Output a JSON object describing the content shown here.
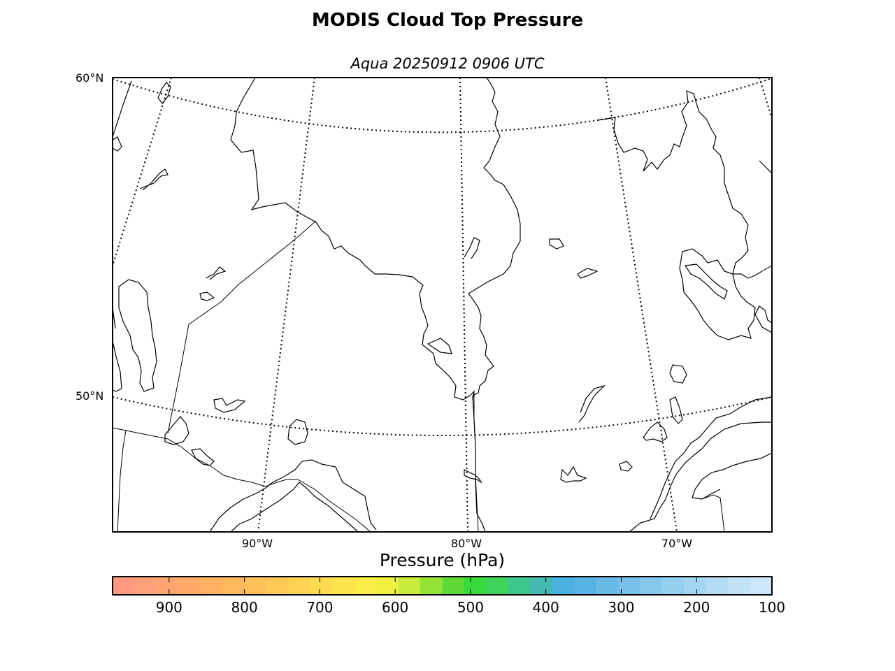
{
  "figure": {
    "title": "MODIS Cloud Top Pressure",
    "subtitle": "Aqua 20250912 0906 UTC"
  },
  "map": {
    "latitude_labels": [
      "60°N",
      "50°N"
    ],
    "longitude_labels": [
      "90°W",
      "80°W",
      "70°W"
    ],
    "gridlines": "dotted",
    "coastlines": true,
    "borders": true,
    "data_shown": "none"
  },
  "colorbar": {
    "label": "Pressure (hPa)",
    "ticks": [
      "900",
      "800",
      "700",
      "600",
      "500",
      "400",
      "300",
      "200",
      "100"
    ],
    "tick_values": [
      900,
      800,
      700,
      600,
      500,
      400,
      300,
      200,
      100
    ],
    "range": [
      975,
      100
    ],
    "colors": [
      "#ff9a80",
      "#ffa078",
      "#ffa670",
      "#ffab68",
      "#ffb262",
      "#ffb95d",
      "#ffc158",
      "#ffc955",
      "#ffd253",
      "#ffdb50",
      "#ffe44c",
      "#fcec47",
      "#f0f040",
      "#c8ec3a",
      "#95e236",
      "#5ed936",
      "#38d93b",
      "#3fd35a",
      "#3dc78a",
      "#44b9b0",
      "#4ab1e0",
      "#58b3e4",
      "#68bbe6",
      "#76c0e9",
      "#86c8ec",
      "#95cfef",
      "#a5d6f1",
      "#b4dcf4",
      "#c2e2f7",
      "#cfe7fa"
    ]
  }
}
